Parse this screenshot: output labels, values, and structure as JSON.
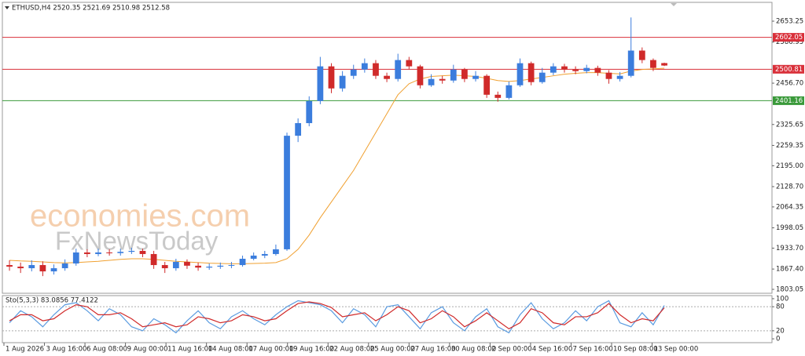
{
  "watermark": [
    "economies.com",
    "FxNewsToday"
  ],
  "chart_data": [
    {
      "type": "candlestick",
      "title": "ETHUSD,H4  2520.35 2521.69 2510.98 2512.58",
      "up_color": "#3b7ddd",
      "down_color": "#d02a2a",
      "xlim": [
        -0.5,
        68.7
      ],
      "xticks": [
        {
          "value": -0.5,
          "label": "1 Aug 2026"
        },
        {
          "value": 3.15,
          "label": "3 Aug 16:00"
        },
        {
          "value": 6.8,
          "label": "6 Aug 08:00"
        },
        {
          "value": 10.45,
          "label": "9 Aug 00:00"
        },
        {
          "value": 14.1,
          "label": "11 Aug 16:00"
        },
        {
          "value": 17.75,
          "label": "14 Aug 08:00"
        },
        {
          "value": 21.4,
          "label": "17 Aug 00:00"
        },
        {
          "value": 25.05,
          "label": "19 Aug 16:00"
        },
        {
          "value": 28.7,
          "label": "22 Aug 08:00"
        },
        {
          "value": 32.35,
          "label": "25 Aug 00:00"
        },
        {
          "value": 36,
          "label": "27 Aug 16:00"
        },
        {
          "value": 39.65,
          "label": "30 Aug 08:00"
        },
        {
          "value": 43.3,
          "label": "2 Sep 00:00"
        },
        {
          "value": 46.95,
          "label": "4 Sep 16:00"
        },
        {
          "value": 50.6,
          "label": "7 Sep 16:00"
        },
        {
          "value": 54.25,
          "label": "10 Sep 08:00"
        },
        {
          "value": 57.9,
          "label": "13 Sep 00:00"
        }
      ],
      "ylim": [
        1790.6,
        2712.9
      ],
      "yticks": [
        1803.05,
        {
          "value": 1867.4,
          "label": "1867.40"
        },
        {
          "value": 1933.7,
          "label": "1933.70"
        },
        1998.05,
        2064.35,
        {
          "value": 2128.7,
          "label": "2128.70"
        },
        {
          "value": 2195,
          "label": "2195.00"
        },
        2259.35,
        2325.65,
        {
          "value": 2456.7,
          "label": "2456.70"
        },
        2586.95,
        2653.25
      ],
      "open": [
        1880,
        1875,
        1870,
        1880,
        1860,
        1870,
        1885,
        1920,
        1915,
        1920,
        1918,
        1922,
        1925,
        1915,
        1880,
        1870,
        1890,
        1878,
        1872,
        1875,
        1878,
        1880,
        1900,
        1910,
        1915,
        1930,
        2290,
        2330,
        2400,
        2510,
        2440,
        2480,
        2500,
        2520,
        2480,
        2470,
        2530,
        2510,
        2450,
        2470,
        2465,
        2500,
        2470,
        2480,
        2420,
        2410,
        2450,
        2520,
        2460,
        2490,
        2510,
        2500,
        2495,
        2505,
        2490,
        2470,
        2480,
        2560,
        2530,
        2520.35
      ],
      "high": [
        1895,
        1888,
        1895,
        1892,
        1882,
        1898,
        1932,
        1930,
        1932,
        1930,
        1932,
        1935,
        1932,
        1925,
        1890,
        1900,
        1898,
        1888,
        1885,
        1888,
        1890,
        1910,
        1920,
        1925,
        1945,
        2300,
        2345,
        2415,
        2540,
        2520,
        2495,
        2515,
        2535,
        2530,
        2490,
        2550,
        2540,
        2515,
        2485,
        2480,
        2515,
        2505,
        2495,
        2485,
        2430,
        2462,
        2535,
        2525,
        2505,
        2520,
        2518,
        2510,
        2515,
        2512,
        2498,
        2492,
        2665,
        2570,
        2535,
        2521.69
      ],
      "low": [
        1862,
        1855,
        1860,
        1845,
        1850,
        1862,
        1878,
        1905,
        1908,
        1910,
        1910,
        1915,
        1905,
        1868,
        1855,
        1862,
        1868,
        1862,
        1865,
        1868,
        1870,
        1875,
        1895,
        1902,
        1910,
        1925,
        2270,
        2320,
        2390,
        2425,
        2430,
        2470,
        2490,
        2470,
        2460,
        2462,
        2500,
        2440,
        2445,
        2455,
        2458,
        2460,
        2462,
        2410,
        2398,
        2405,
        2445,
        2450,
        2455,
        2482,
        2490,
        2485,
        2488,
        2480,
        2455,
        2462,
        2475,
        2520,
        2495,
        2510.98
      ],
      "close": [
        1875,
        1870,
        1880,
        1860,
        1870,
        1885,
        1920,
        1915,
        1920,
        1918,
        1922,
        1925,
        1915,
        1880,
        1870,
        1890,
        1878,
        1872,
        1875,
        1878,
        1880,
        1900,
        1910,
        1915,
        1930,
        2290,
        2330,
        2400,
        2510,
        2440,
        2480,
        2500,
        2520,
        2480,
        2470,
        2530,
        2510,
        2450,
        2470,
        2465,
        2500,
        2470,
        2480,
        2420,
        2410,
        2450,
        2520,
        2460,
        2490,
        2510,
        2500,
        2495,
        2505,
        2490,
        2470,
        2480,
        2560,
        2530,
        2505,
        2512.58
      ],
      "series": [
        {
          "color": "#f0a030",
          "values": [
            1895,
            1893,
            1892,
            1890,
            1888,
            1887,
            1888,
            1890,
            1892,
            1895,
            1898,
            1900,
            1900,
            1898,
            1895,
            1892,
            1890,
            1888,
            1886,
            1885,
            1884,
            1884,
            1885,
            1886,
            1888,
            1900,
            1930,
            1975,
            2030,
            2080,
            2130,
            2180,
            2240,
            2300,
            2360,
            2420,
            2455,
            2470,
            2478,
            2480,
            2482,
            2480,
            2478,
            2472,
            2465,
            2462,
            2465,
            2470,
            2475,
            2480,
            2485,
            2488,
            2490,
            2490,
            2488,
            2486,
            2495,
            2500,
            2502,
            2504
          ]
        }
      ],
      "lines": [
        {
          "value": 2602.05,
          "color": "#d9303a"
        },
        {
          "value": 2500.81,
          "color": "#d9303a"
        },
        {
          "value": 2401.16,
          "color": "#3a9a3a"
        }
      ]
    },
    {
      "type": "line",
      "title": "Sto(5,3,3) 83.0856 77.4122",
      "xlim": [
        -0.5,
        68.7
      ],
      "ylim": [
        -9.6,
        107.7
      ],
      "yticks": [
        0,
        20,
        80,
        100
      ],
      "levels": [
        20,
        80
      ],
      "series": [
        {
          "color": "#5a9be0",
          "values": [
            40,
            70,
            55,
            30,
            60,
            85,
            90,
            70,
            45,
            75,
            60,
            30,
            20,
            50,
            35,
            15,
            45,
            70,
            40,
            25,
            55,
            70,
            50,
            35,
            60,
            80,
            95,
            90,
            85,
            70,
            40,
            75,
            60,
            30,
            80,
            85,
            55,
            25,
            65,
            80,
            40,
            20,
            55,
            75,
            30,
            15,
            60,
            90,
            50,
            25,
            40,
            70,
            45,
            80,
            95,
            40,
            30,
            65,
            35,
            83.0856
          ]
        },
        {
          "color": "#d02a2a",
          "values": [
            45,
            60,
            60,
            45,
            50,
            70,
            85,
            80,
            60,
            60,
            65,
            50,
            30,
            35,
            40,
            30,
            35,
            55,
            50,
            40,
            45,
            60,
            55,
            45,
            50,
            70,
            88,
            92,
            88,
            78,
            55,
            60,
            65,
            45,
            60,
            80,
            70,
            40,
            50,
            70,
            55,
            30,
            45,
            65,
            45,
            25,
            40,
            75,
            65,
            40,
            35,
            55,
            55,
            65,
            88,
            60,
            40,
            50,
            45,
            77.4122
          ]
        }
      ]
    }
  ]
}
